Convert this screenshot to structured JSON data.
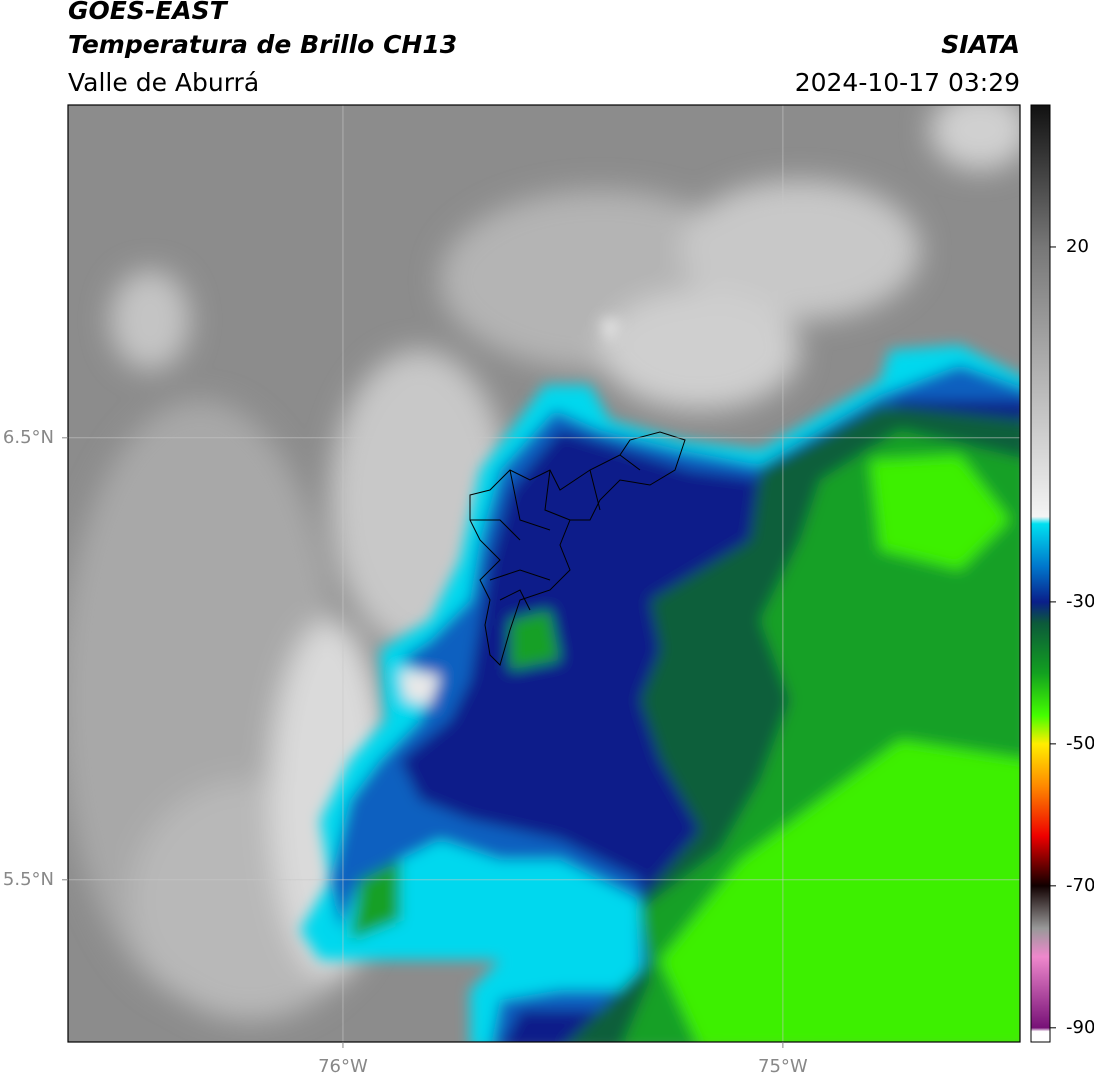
{
  "header": {
    "title": "GOES-EAST",
    "subtitle": "Temperatura de Brillo CH13",
    "region": "Valle de Aburrá",
    "source": "SIATA",
    "timestamp": "2024-10-17 03:29"
  },
  "map": {
    "xlim": [
      -76.625,
      -74.461
    ],
    "ylim": [
      5.133,
      7.253
    ],
    "xticks": [
      {
        "value": -76,
        "label": "76°W"
      },
      {
        "value": -75,
        "label": "75°W"
      }
    ],
    "yticks": [
      {
        "value": 5.5,
        "label": "5.5°N"
      },
      {
        "value": 6.5,
        "label": "6.5°N"
      }
    ],
    "grid": true
  },
  "colorbar": {
    "lim": [
      -92,
      40
    ],
    "ticks": [
      20,
      -30,
      -50,
      -70,
      -90
    ],
    "stops": [
      {
        "value": 40,
        "color": "#111111"
      },
      {
        "value": 20,
        "color": "#777777"
      },
      {
        "value": -18,
        "color": "#f4f4f4"
      },
      {
        "value": -19,
        "color": "#00e0f0"
      },
      {
        "value": -25,
        "color": "#0077cc"
      },
      {
        "value": -30,
        "color": "#0a1f8a"
      },
      {
        "value": -33,
        "color": "#0c5a3a"
      },
      {
        "value": -40,
        "color": "#12a020"
      },
      {
        "value": -46,
        "color": "#44ff00"
      },
      {
        "value": -50,
        "color": "#ffee00"
      },
      {
        "value": -56,
        "color": "#ff8800"
      },
      {
        "value": -63,
        "color": "#ee0000"
      },
      {
        "value": -70,
        "color": "#110000"
      },
      {
        "value": -76,
        "color": "#999999"
      },
      {
        "value": -80,
        "color": "#ee88cc"
      },
      {
        "value": -90,
        "color": "#771177"
      },
      {
        "value": -90.5,
        "color": "#ffffff"
      },
      {
        "value": -92,
        "color": "#ffffff"
      }
    ]
  }
}
